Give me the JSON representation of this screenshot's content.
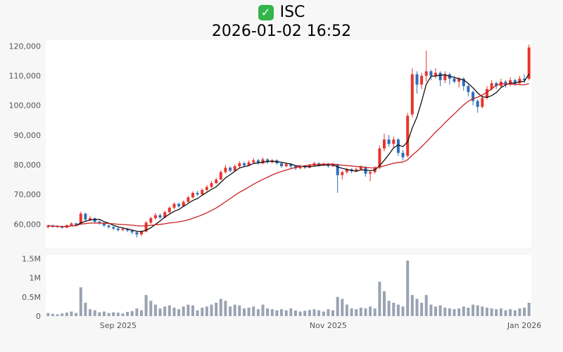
{
  "header": {
    "icon": "green-checkmark",
    "symbol": "ISC",
    "timestamp": "2026-01-02 16:52"
  },
  "chart_data": {
    "type": "candlestick+volume",
    "title": "ISC",
    "subtitle": "2026-01-02 16:52",
    "legend_position": "none",
    "grid": false,
    "price_axis": {
      "range": [
        52000,
        122000
      ],
      "ticks": [
        {
          "value": 60000,
          "label": "60,000"
        },
        {
          "value": 70000,
          "label": "70,000"
        },
        {
          "value": 80000,
          "label": "80,000"
        },
        {
          "value": 90000,
          "label": "90,000"
        },
        {
          "value": 100000,
          "label": "100,000"
        },
        {
          "value": 110000,
          "label": "110,000"
        },
        {
          "value": 120000,
          "label": "120,000"
        }
      ]
    },
    "volume_axis": {
      "range": [
        0,
        1600000
      ],
      "ticks": [
        {
          "value": 0,
          "label": "0"
        },
        {
          "value": 500000,
          "label": "0.5M"
        },
        {
          "value": 1000000,
          "label": "1M"
        },
        {
          "value": 1500000,
          "label": "1.5M"
        }
      ]
    },
    "x_ticks": [
      {
        "index": 15,
        "label": "Sep 2025"
      },
      {
        "index": 60,
        "label": "Nov 2025"
      },
      {
        "index": 102,
        "label": "Jan 2026"
      }
    ],
    "moving_averages": [
      {
        "name": "MA5",
        "window": 5,
        "color": "#111111"
      },
      {
        "name": "MA20",
        "window": 20,
        "color": "#cc2222"
      }
    ],
    "colors": {
      "up": "#e8352c",
      "down": "#2f6db8",
      "volume": "#9aa3b2",
      "background": "#f7f7f7",
      "plot_bg": "#ffffff",
      "axis_text": "#555555",
      "check_green": "#33b54a"
    },
    "candles": [
      [
        59000,
        59800,
        58500,
        59500
      ],
      [
        59500,
        59900,
        58800,
        59000
      ],
      [
        59000,
        59600,
        58700,
        59300
      ],
      [
        59300,
        59500,
        58400,
        58800
      ],
      [
        58800,
        59900,
        58600,
        59600
      ],
      [
        59600,
        60600,
        59300,
        60200
      ],
      [
        60200,
        60500,
        59400,
        59800
      ],
      [
        60000,
        64200,
        59800,
        63500
      ],
      [
        63500,
        63800,
        61000,
        61500
      ],
      [
        61500,
        62800,
        61000,
        62000
      ],
      [
        62000,
        62200,
        60400,
        60800
      ],
      [
        60800,
        61200,
        59800,
        60200
      ],
      [
        60200,
        60500,
        59000,
        59500
      ],
      [
        59500,
        59800,
        58500,
        59000
      ],
      [
        59000,
        59300,
        58000,
        58500
      ],
      [
        58500,
        58800,
        57500,
        58000
      ],
      [
        58000,
        58700,
        57600,
        58400
      ],
      [
        58400,
        58600,
        57300,
        57800
      ],
      [
        57800,
        58000,
        56600,
        57200
      ],
      [
        57200,
        57500,
        55500,
        56500
      ],
      [
        56500,
        57800,
        56000,
        57500
      ],
      [
        57500,
        61000,
        57200,
        60500
      ],
      [
        60500,
        62500,
        60000,
        62000
      ],
      [
        62000,
        63800,
        61500,
        63000
      ],
      [
        63000,
        63500,
        61800,
        62200
      ],
      [
        62200,
        64500,
        62000,
        64000
      ],
      [
        64000,
        66000,
        63600,
        65500
      ],
      [
        65500,
        67300,
        65000,
        66800
      ],
      [
        66800,
        67200,
        65500,
        66000
      ],
      [
        66000,
        68000,
        65800,
        67500
      ],
      [
        67500,
        69500,
        67200,
        69000
      ],
      [
        69000,
        71000,
        68600,
        70500
      ],
      [
        70500,
        71200,
        69500,
        70000
      ],
      [
        70000,
        72000,
        69800,
        71500
      ],
      [
        71500,
        73200,
        71000,
        72500
      ],
      [
        72500,
        74500,
        72200,
        73800
      ],
      [
        73800,
        75600,
        73500,
        75000
      ],
      [
        75000,
        78200,
        74800,
        77500
      ],
      [
        77500,
        80000,
        77000,
        79000
      ],
      [
        79000,
        79500,
        77500,
        78000
      ],
      [
        78000,
        80200,
        77800,
        79500
      ],
      [
        79500,
        81200,
        79000,
        80500
      ],
      [
        80500,
        81000,
        79200,
        79800
      ],
      [
        79800,
        81500,
        79500,
        80800
      ],
      [
        80800,
        82300,
        80400,
        81500
      ],
      [
        81500,
        82000,
        80000,
        80500
      ],
      [
        80500,
        82500,
        80200,
        81800
      ],
      [
        81800,
        82200,
        80300,
        80800
      ],
      [
        80800,
        82000,
        80500,
        81500
      ],
      [
        81500,
        81800,
        80000,
        80500
      ],
      [
        80500,
        80800,
        79000,
        79500
      ],
      [
        79500,
        80800,
        79200,
        80200
      ],
      [
        80200,
        80500,
        78800,
        79500
      ],
      [
        79500,
        79800,
        78200,
        78800
      ],
      [
        78800,
        80000,
        78500,
        79500
      ],
      [
        79500,
        79900,
        78600,
        79000
      ],
      [
        79000,
        80300,
        78800,
        79800
      ],
      [
        79800,
        81000,
        79500,
        80500
      ],
      [
        80500,
        80800,
        79400,
        79800
      ],
      [
        79800,
        80800,
        79500,
        80300
      ],
      [
        80300,
        80600,
        79000,
        79500
      ],
      [
        79500,
        80700,
        79200,
        80200
      ],
      [
        80200,
        80400,
        70500,
        76500
      ],
      [
        76500,
        78000,
        75000,
        77500
      ],
      [
        77500,
        79000,
        77000,
        78500
      ],
      [
        78500,
        78800,
        77200,
        77800
      ],
      [
        77800,
        79000,
        77500,
        78500
      ],
      [
        78500,
        79800,
        78200,
        79200
      ],
      [
        79200,
        79500,
        76000,
        77000
      ],
      [
        77000,
        78000,
        74500,
        77500
      ],
      [
        77500,
        79500,
        77000,
        79000
      ],
      [
        79000,
        86500,
        78500,
        85500
      ],
      [
        85500,
        90500,
        84500,
        88500
      ],
      [
        88500,
        90000,
        86000,
        87000
      ],
      [
        87000,
        89500,
        85500,
        88500
      ],
      [
        88500,
        89000,
        83000,
        84000
      ],
      [
        84000,
        85000,
        81500,
        82500
      ],
      [
        83000,
        97500,
        82500,
        96500
      ],
      [
        97000,
        112500,
        96000,
        110500
      ],
      [
        110500,
        111500,
        104000,
        107000
      ],
      [
        107000,
        111000,
        105500,
        110000
      ],
      [
        110000,
        118500,
        108000,
        111500
      ],
      [
        111500,
        112000,
        108500,
        110000
      ],
      [
        110000,
        112500,
        109000,
        111000
      ],
      [
        111000,
        111500,
        106500,
        108500
      ],
      [
        108500,
        111500,
        107500,
        110500
      ],
      [
        110500,
        111000,
        107000,
        109000
      ],
      [
        109000,
        110000,
        107500,
        108000
      ],
      [
        108000,
        109500,
        106000,
        109000
      ],
      [
        109000,
        109500,
        105000,
        106500
      ],
      [
        106500,
        107000,
        103000,
        104500
      ],
      [
        104500,
        105000,
        100000,
        101500
      ],
      [
        101500,
        102000,
        97500,
        99500
      ],
      [
        99500,
        103500,
        99000,
        102500
      ],
      [
        102500,
        106500,
        102000,
        105500
      ],
      [
        105500,
        108500,
        105000,
        107500
      ],
      [
        107500,
        108000,
        105500,
        106500
      ],
      [
        106500,
        109000,
        106000,
        108000
      ],
      [
        108000,
        108500,
        106000,
        107000
      ],
      [
        107000,
        109500,
        106500,
        108500
      ],
      [
        108500,
        109000,
        106500,
        107500
      ],
      [
        107500,
        110000,
        107000,
        109000
      ],
      [
        109000,
        110500,
        107500,
        108500
      ],
      [
        109000,
        120500,
        108500,
        119500
      ]
    ],
    "volumes": [
      80000,
      60000,
      50000,
      70000,
      90000,
      120000,
      80000,
      750000,
      350000,
      180000,
      150000,
      100000,
      120000,
      80000,
      100000,
      90000,
      70000,
      110000,
      130000,
      200000,
      150000,
      550000,
      400000,
      300000,
      200000,
      250000,
      280000,
      220000,
      180000,
      250000,
      300000,
      280000,
      150000,
      220000,
      250000,
      300000,
      350000,
      450000,
      400000,
      250000,
      300000,
      280000,
      200000,
      220000,
      250000,
      180000,
      300000,
      200000,
      180000,
      150000,
      180000,
      150000,
      200000,
      150000,
      120000,
      140000,
      160000,
      180000,
      150000,
      120000,
      180000,
      150000,
      500000,
      450000,
      300000,
      200000,
      180000,
      220000,
      200000,
      250000,
      200000,
      900000,
      650000,
      400000,
      350000,
      300000,
      250000,
      1450000,
      550000,
      450000,
      350000,
      550000,
      300000,
      250000,
      280000,
      220000,
      200000,
      180000,
      200000,
      250000,
      220000,
      300000,
      280000,
      250000,
      220000,
      200000,
      180000,
      200000,
      150000,
      180000,
      150000,
      200000,
      220000,
      350000
    ]
  }
}
